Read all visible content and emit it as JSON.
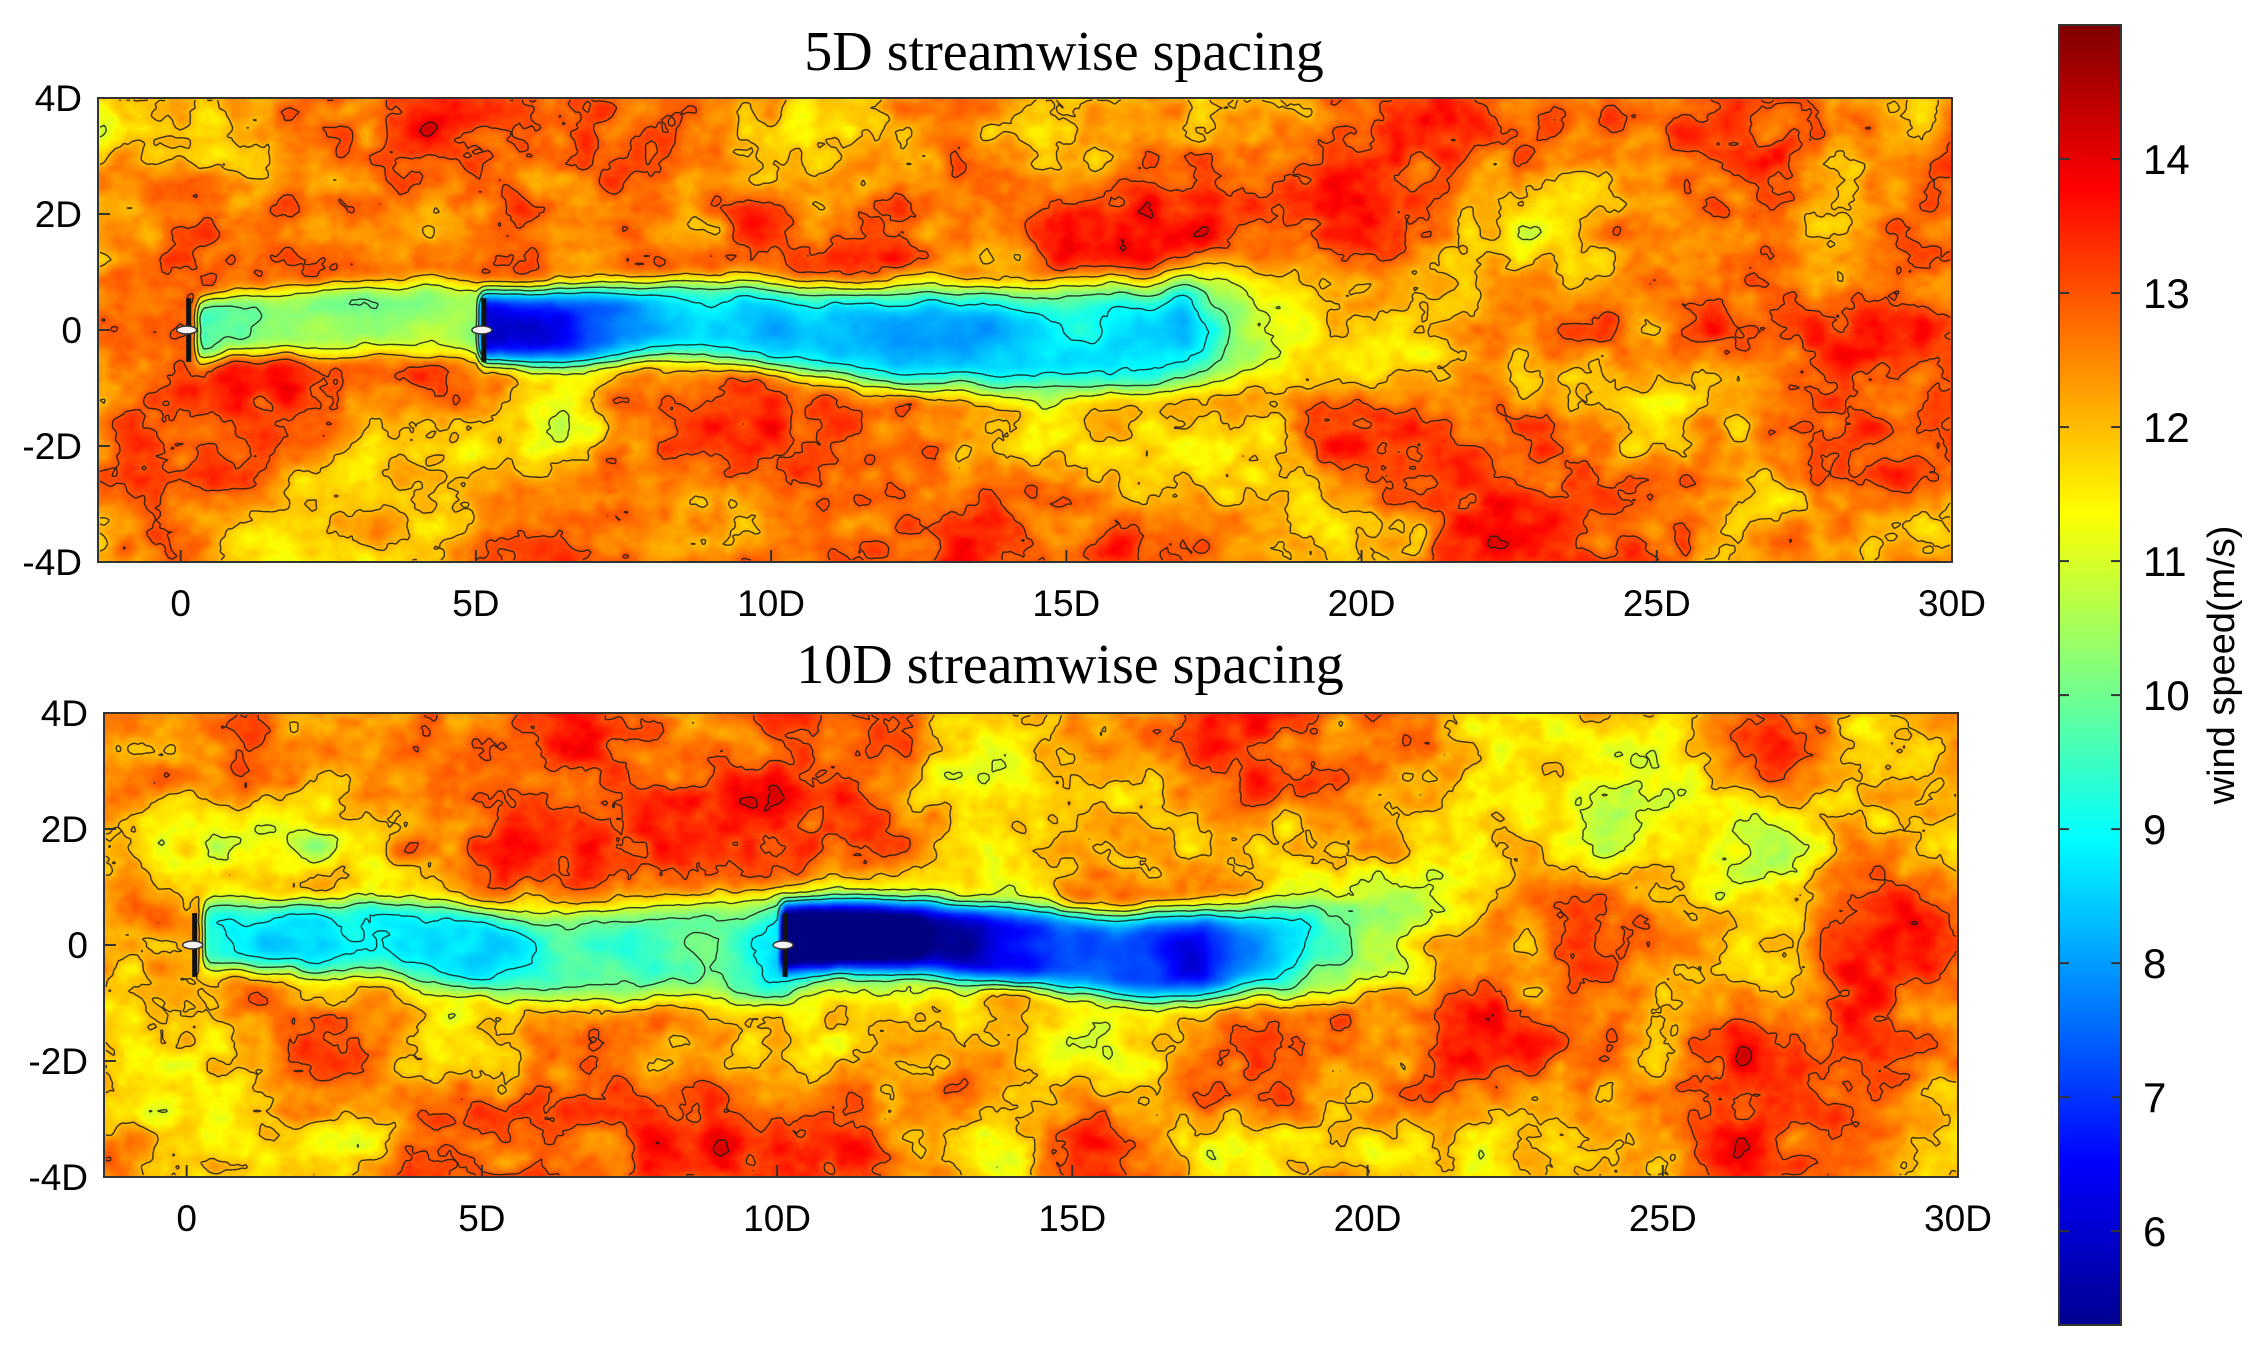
{
  "chart_data": [
    {
      "type": "heatmap",
      "title": "5D streamwise spacing",
      "x_ticks": [
        0,
        5,
        10,
        15,
        20,
        25,
        30
      ],
      "x_tick_labels": [
        "0",
        "5D",
        "10D",
        "15D",
        "20D",
        "25D",
        "30D"
      ],
      "xlim": [
        -1.4,
        30
      ],
      "y_ticks": [
        4,
        2,
        0,
        -2,
        -4
      ],
      "y_tick_labels": [
        "4D",
        "2D",
        "0",
        "-2D",
        "-4D"
      ],
      "ylim": [
        -4,
        4
      ],
      "turbines_x": [
        0,
        5
      ],
      "ambient_wind_speed": 12.6,
      "wakes": [
        {
          "start_x": 0.2,
          "end_x": 5.0,
          "deficit": 3.4,
          "half_width": 0.55
        },
        {
          "start_x": 5.0,
          "end_x": 17.0,
          "deficit": 4.3,
          "half_width": 0.62
        }
      ],
      "grid": false
    },
    {
      "type": "heatmap",
      "title": "10D streamwise spacing",
      "x_ticks": [
        0,
        5,
        10,
        15,
        20,
        25,
        30
      ],
      "x_tick_labels": [
        "0",
        "5D",
        "10D",
        "15D",
        "20D",
        "25D",
        "30D"
      ],
      "xlim": [
        -1.4,
        30
      ],
      "y_ticks": [
        4,
        2,
        0,
        -2,
        -4
      ],
      "y_tick_labels": [
        "4D",
        "2D",
        "0",
        "-2D",
        "-4D"
      ],
      "ylim": [
        -4,
        4
      ],
      "turbines_x": [
        0,
        10
      ],
      "ambient_wind_speed": 12.4,
      "wakes": [
        {
          "start_x": 0.2,
          "end_x": 10.0,
          "deficit": 3.2,
          "half_width": 0.6
        },
        {
          "start_x": 10.0,
          "end_x": 17.2,
          "deficit": 5.6,
          "half_width": 0.55
        }
      ],
      "grid": false
    }
  ],
  "colorbar": {
    "label": "wind speed(m/s)",
    "range": [
      5.3,
      15.0
    ],
    "ticks": [
      6,
      7,
      8,
      9,
      10,
      11,
      12,
      13,
      14
    ],
    "tick_labels": [
      "6",
      "7",
      "8",
      "9",
      "10",
      "11",
      "12",
      "13",
      "14"
    ],
    "colormap": "jet"
  }
}
